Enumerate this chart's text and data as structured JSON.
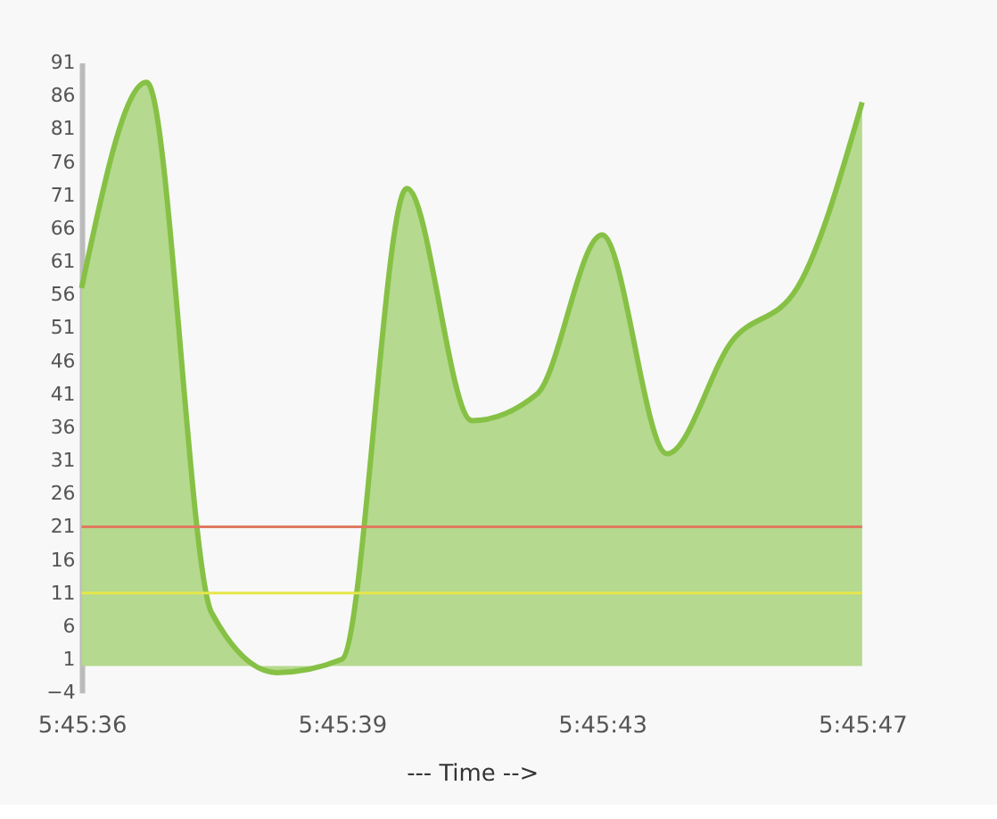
{
  "chart_data": {
    "type": "area",
    "xlabel": "--- Time -->",
    "categories": [
      "5:45:36",
      null,
      null,
      null,
      "5:45:39",
      null,
      null,
      null,
      "5:45:43",
      null,
      null,
      null,
      "5:45:47"
    ],
    "series": [
      {
        "color": "#b5d98e",
        "values": [
          57,
          88,
          8,
          -1,
          1,
          72,
          37,
          41,
          65,
          32,
          49,
          57,
          85
        ]
      }
    ],
    "ylim": [
      -4,
      91
    ],
    "yticks": [
      -4,
      1,
      6,
      11,
      16,
      21,
      26,
      31,
      36,
      41,
      46,
      51,
      56,
      61,
      66,
      71,
      76,
      81,
      86,
      91
    ],
    "ref_lines": [
      {
        "axis": "y",
        "value": 21,
        "color": "#e07a5f"
      },
      {
        "axis": "y",
        "value": 11,
        "color": "#e6e64a"
      }
    ],
    "grid": false,
    "marker": "none"
  }
}
